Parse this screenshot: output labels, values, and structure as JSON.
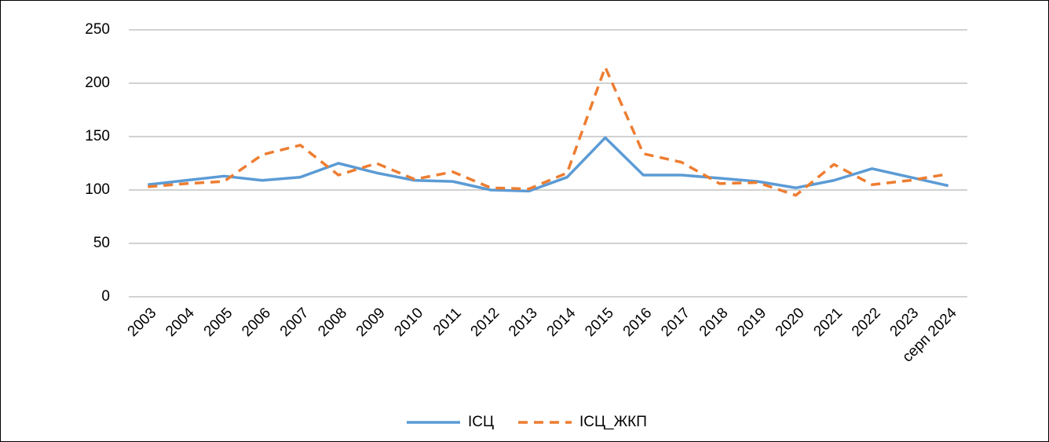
{
  "chart_data": {
    "type": "line",
    "categories": [
      "2003",
      "2004",
      "2005",
      "2006",
      "2007",
      "2008",
      "2009",
      "2010",
      "2011",
      "2012",
      "2013",
      "2014",
      "2015",
      "2016",
      "2017",
      "2018",
      "2019",
      "2020",
      "2021",
      "2022",
      "2023",
      "серп 2024"
    ],
    "series": [
      {
        "name": "ІСЦ",
        "color": "#5b9bd5",
        "style": "solid",
        "values": [
          105,
          109,
          113,
          109,
          112,
          125,
          116,
          109,
          108,
          100,
          99,
          112,
          149,
          114,
          114,
          111,
          108,
          102,
          109,
          120,
          112,
          104
        ]
      },
      {
        "name": "ІСЦ_ЖКП",
        "color": "#ed7d31",
        "style": "dashed",
        "values": [
          103,
          106,
          108,
          133,
          142,
          114,
          125,
          110,
          117,
          102,
          101,
          116,
          215,
          134,
          126,
          106,
          107,
          95,
          124,
          105,
          109,
          115
        ]
      }
    ],
    "ylim": [
      0,
      250
    ],
    "yticks": [
      0,
      50,
      100,
      150,
      200,
      250
    ],
    "grid": true,
    "legend": "bottom"
  }
}
